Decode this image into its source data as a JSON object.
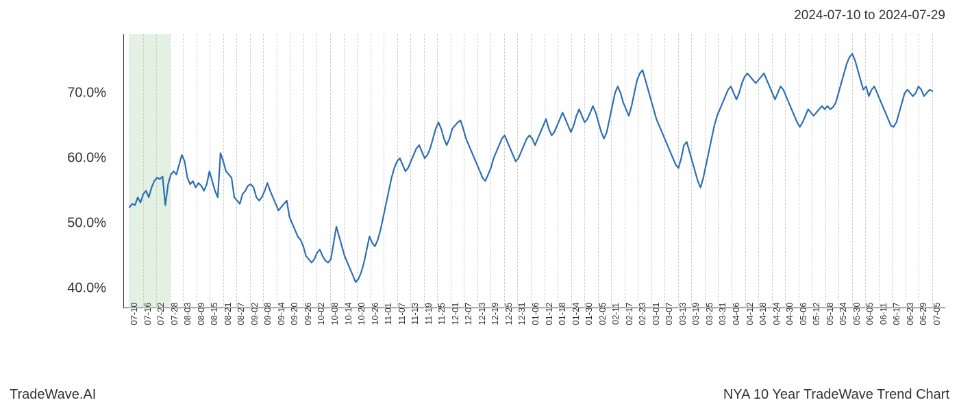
{
  "header": {
    "date_range": "2024-07-10 to 2024-07-29"
  },
  "footer": {
    "brand": "TradeWave.AI",
    "title": "NYA 10 Year TradeWave Trend Chart"
  },
  "chart": {
    "type": "line",
    "background_color": "#ffffff",
    "line_color": "#2d6eb3",
    "line_width": 2.2,
    "grid_color": "#cccccc",
    "grid_style": "dashed",
    "axis_color": "#333333",
    "highlight_band": {
      "color": "rgba(144,200,144,0.25)",
      "x_start_index": 0,
      "x_end_index": 3
    },
    "y_axis": {
      "min": 37,
      "max": 79,
      "ticks": [
        40,
        50,
        60,
        70
      ],
      "tick_labels": [
        "40.0%",
        "50.0%",
        "60.0%",
        "70.0%"
      ],
      "label_fontsize": 20
    },
    "x_axis": {
      "tick_labels": [
        "07-10",
        "07-16",
        "07-22",
        "07-28",
        "08-03",
        "08-09",
        "08-15",
        "08-21",
        "08-27",
        "09-02",
        "09-08",
        "09-14",
        "09-20",
        "09-26",
        "10-02",
        "10-08",
        "10-14",
        "10-20",
        "10-26",
        "11-01",
        "11-07",
        "11-13",
        "11-19",
        "11-25",
        "12-01",
        "12-07",
        "12-13",
        "12-19",
        "12-25",
        "12-31",
        "01-06",
        "01-12",
        "01-18",
        "01-24",
        "01-30",
        "02-05",
        "02-11",
        "02-17",
        "02-23",
        "03-01",
        "03-07",
        "03-13",
        "03-19",
        "03-25",
        "03-31",
        "04-06",
        "04-12",
        "04-18",
        "04-24",
        "04-30",
        "05-06",
        "05-12",
        "05-18",
        "05-24",
        "05-30",
        "06-05",
        "06-11",
        "06-17",
        "06-23",
        "06-29",
        "07-05"
      ],
      "label_fontsize": 13,
      "label_rotation": 90
    },
    "series": {
      "values": [
        52.5,
        53.0,
        52.8,
        54.0,
        53.2,
        54.5,
        55.0,
        54.0,
        55.5,
        56.5,
        57.0,
        56.8,
        57.2,
        52.8,
        56.0,
        57.5,
        58.0,
        57.5,
        59.0,
        60.5,
        59.5,
        57.0,
        56.0,
        56.5,
        55.5,
        56.2,
        55.8,
        55.0,
        56.0,
        58.0,
        56.5,
        55.0,
        54.0,
        60.8,
        59.5,
        58.0,
        57.5,
        57.0,
        54.0,
        53.5,
        53.0,
        54.5,
        55.0,
        55.8,
        56.0,
        55.5,
        54.0,
        53.5,
        54.0,
        55.0,
        56.2,
        55.0,
        54.0,
        53.0,
        52.0,
        52.5,
        53.0,
        53.5,
        51.0,
        50.0,
        49.0,
        48.0,
        47.5,
        46.5,
        45.0,
        44.5,
        44.0,
        44.5,
        45.5,
        46.0,
        45.0,
        44.3,
        44.0,
        44.5,
        47.0,
        49.5,
        48.0,
        46.5,
        45.0,
        44.0,
        43.0,
        42.0,
        41.0,
        41.5,
        42.5,
        44.0,
        46.0,
        48.0,
        47.0,
        46.5,
        47.5,
        49.0,
        51.0,
        53.0,
        55.0,
        57.0,
        58.5,
        59.5,
        60.0,
        59.0,
        58.0,
        58.5,
        59.5,
        60.5,
        61.5,
        62.0,
        61.0,
        60.0,
        60.5,
        61.5,
        63.0,
        64.5,
        65.5,
        64.5,
        63.0,
        62.0,
        63.0,
        64.5,
        65.0,
        65.5,
        65.8,
        64.5,
        63.0,
        62.0,
        61.0,
        60.0,
        59.0,
        58.0,
        57.0,
        56.5,
        57.5,
        58.5,
        60.0,
        61.0,
        62.0,
        63.0,
        63.5,
        62.5,
        61.5,
        60.5,
        59.5,
        60.0,
        61.0,
        62.0,
        63.0,
        63.5,
        63.0,
        62.0,
        63.0,
        64.0,
        65.0,
        66.0,
        64.5,
        63.5,
        64.0,
        65.0,
        66.0,
        67.0,
        66.0,
        65.0,
        64.0,
        65.0,
        66.5,
        67.5,
        66.5,
        65.5,
        66.0,
        67.0,
        68.0,
        67.0,
        65.5,
        64.0,
        63.0,
        64.0,
        66.0,
        68.0,
        70.0,
        71.0,
        70.0,
        68.5,
        67.5,
        66.5,
        68.0,
        70.0,
        72.0,
        73.0,
        73.5,
        72.0,
        70.5,
        69.0,
        67.5,
        66.0,
        65.0,
        64.0,
        63.0,
        62.0,
        61.0,
        60.0,
        59.0,
        58.5,
        60.0,
        62.0,
        62.5,
        61.0,
        59.5,
        58.0,
        56.5,
        55.5,
        57.0,
        59.0,
        61.0,
        63.0,
        65.0,
        66.5,
        67.5,
        68.5,
        69.5,
        70.5,
        71.0,
        70.0,
        69.0,
        70.0,
        71.5,
        72.5,
        73.0,
        72.5,
        72.0,
        71.5,
        72.0,
        72.5,
        73.0,
        72.0,
        71.0,
        70.0,
        69.0,
        70.0,
        71.0,
        70.5,
        69.5,
        68.5,
        67.5,
        66.5,
        65.5,
        64.8,
        65.5,
        66.5,
        67.5,
        67.0,
        66.5,
        67.0,
        67.5,
        68.0,
        67.5,
        68.0,
        67.5,
        67.8,
        68.5,
        70.0,
        71.5,
        73.0,
        74.5,
        75.5,
        76.0,
        75.0,
        73.5,
        72.0,
        70.5,
        71.0,
        69.5,
        70.5,
        71.0,
        70.0,
        69.0,
        68.0,
        67.0,
        66.0,
        65.0,
        64.8,
        65.5,
        67.0,
        68.5,
        70.0,
        70.5,
        70.0,
        69.5,
        70.0,
        71.0,
        70.5,
        69.5,
        70.0,
        70.5,
        70.3
      ]
    }
  }
}
